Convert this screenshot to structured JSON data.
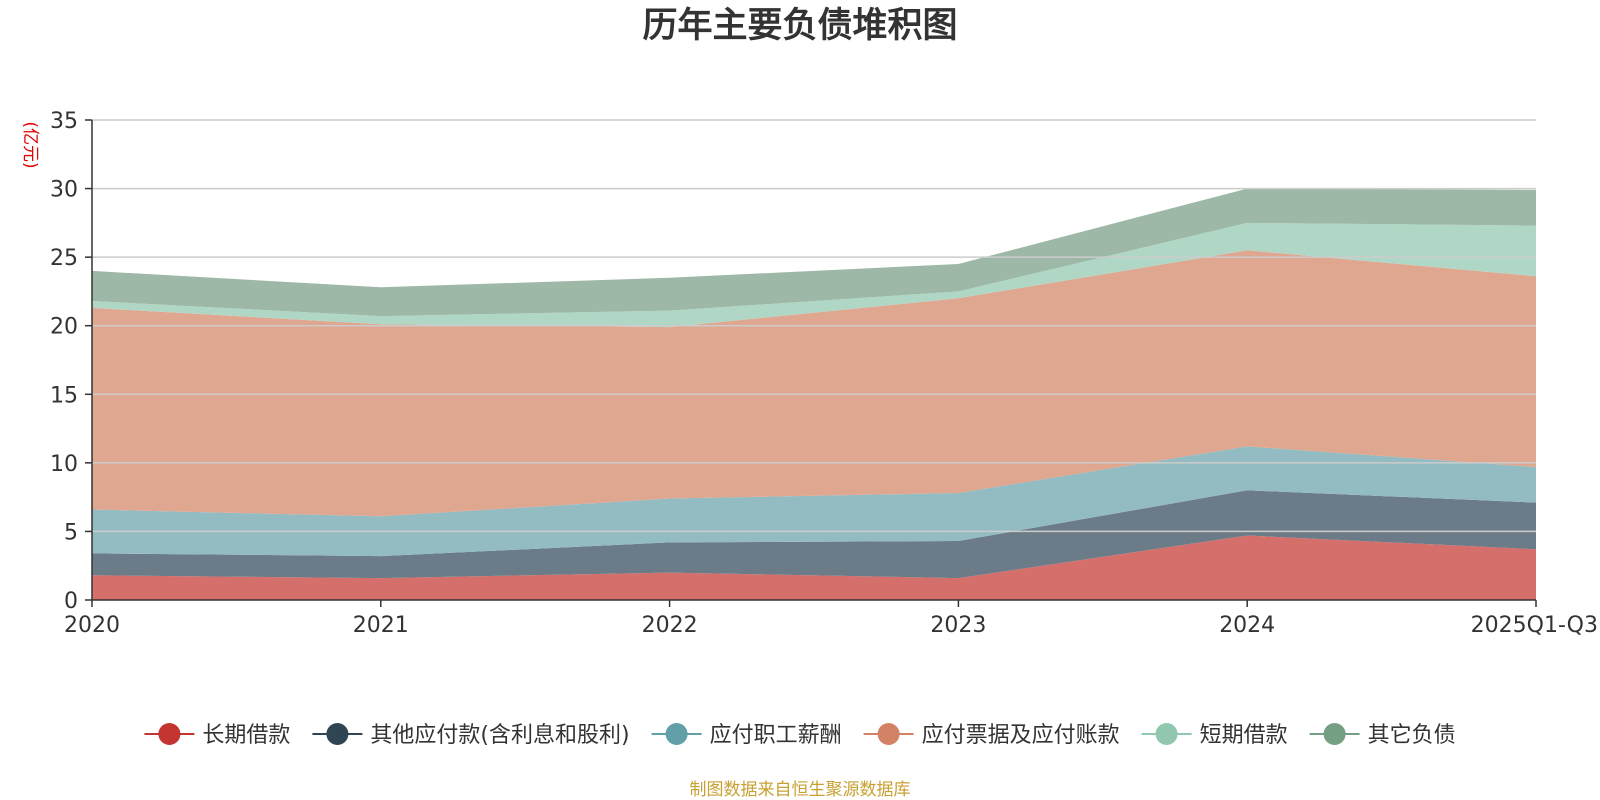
{
  "chart_data": {
    "type": "area",
    "stacked": true,
    "title": "历年主要负债堆积图",
    "y_unit": "(亿元)",
    "ylim": [
      0,
      35
    ],
    "y_ticks": [
      0,
      5,
      10,
      15,
      20,
      25,
      30,
      35
    ],
    "categories": [
      "2020",
      "2021",
      "2022",
      "2023",
      "2024",
      "2025Q1-Q3"
    ],
    "series": [
      {
        "name": "长期借款",
        "values": [
          1.8,
          1.6,
          2.0,
          1.6,
          4.7,
          3.7
        ]
      },
      {
        "name": "其他应付款(含利息和股利)",
        "values": [
          1.6,
          1.6,
          2.2,
          2.7,
          3.3,
          3.4
        ]
      },
      {
        "name": "应付职工薪酬",
        "values": [
          3.2,
          2.9,
          3.2,
          3.5,
          3.2,
          2.6
        ]
      },
      {
        "name": "应付票据及应付账款",
        "values": [
          14.7,
          14.0,
          12.5,
          14.2,
          14.3,
          13.9
        ]
      },
      {
        "name": "短期借款",
        "values": [
          0.5,
          0.6,
          1.2,
          0.5,
          2.0,
          3.7
        ]
      },
      {
        "name": "其它负债",
        "values": [
          2.2,
          2.1,
          2.4,
          2.0,
          2.5,
          2.6
        ]
      }
    ],
    "legend_position": "bottom",
    "grid": true
  },
  "colors": {
    "series_line": [
      "#c23531",
      "#2f4554",
      "#61a0a8",
      "#d48265",
      "#91c7ae",
      "#749f83"
    ],
    "series_fill": [
      "#d46f6c",
      "#6b7b87",
      "#93bcc2",
      "#dfa690",
      "#b0d7c5",
      "#9db8a6"
    ],
    "axis": "#333333",
    "grid": "#cccccc",
    "unit_label": "#e00000",
    "source": "#c8a032"
  },
  "source_note": "制图数据来自恒生聚源数据库"
}
